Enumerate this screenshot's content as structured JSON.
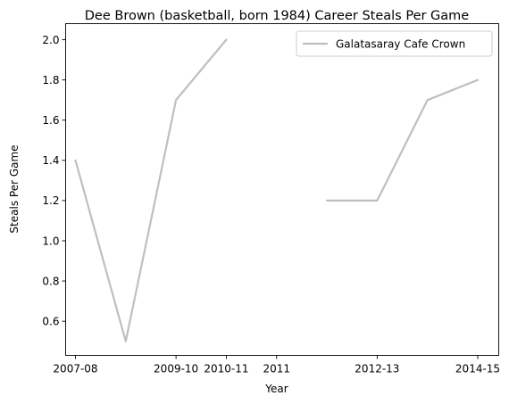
{
  "chart_data": {
    "type": "line",
    "title": "Dee Brown (basketball, born 1984) Career Steals Per Game",
    "xlabel": "Year",
    "ylabel": "Steals Per Game",
    "x_tick_labels": [
      "2007-08",
      "2009-10",
      "2010-11",
      "2011",
      "2012-13",
      "2014-15"
    ],
    "y_ticks": [
      "0.6",
      "0.8",
      "1.0",
      "1.2",
      "1.4",
      "1.6",
      "1.8",
      "2.0"
    ],
    "ylim": [
      0.43,
      2.08
    ],
    "grid": false,
    "legend_position": "top-right",
    "colors": {
      "series": "#bfbfbf",
      "axis": "#000000"
    },
    "series": [
      {
        "name": "Galatasaray Cafe Crown",
        "points": [
          {
            "x": "2007-08",
            "y": 1.4
          },
          {
            "x": "2008-09",
            "y": 0.5
          },
          {
            "x": "2009-10",
            "y": 1.7
          },
          {
            "x": "2010-11",
            "y": 2.0
          },
          {
            "x": "2011",
            "y": null
          },
          {
            "x": "2011-12",
            "y": 1.2
          },
          {
            "x": "2012-13",
            "y": 1.2
          },
          {
            "x": "2013-14",
            "y": 1.7
          },
          {
            "x": "2014-15",
            "y": 1.8
          }
        ]
      }
    ]
  }
}
